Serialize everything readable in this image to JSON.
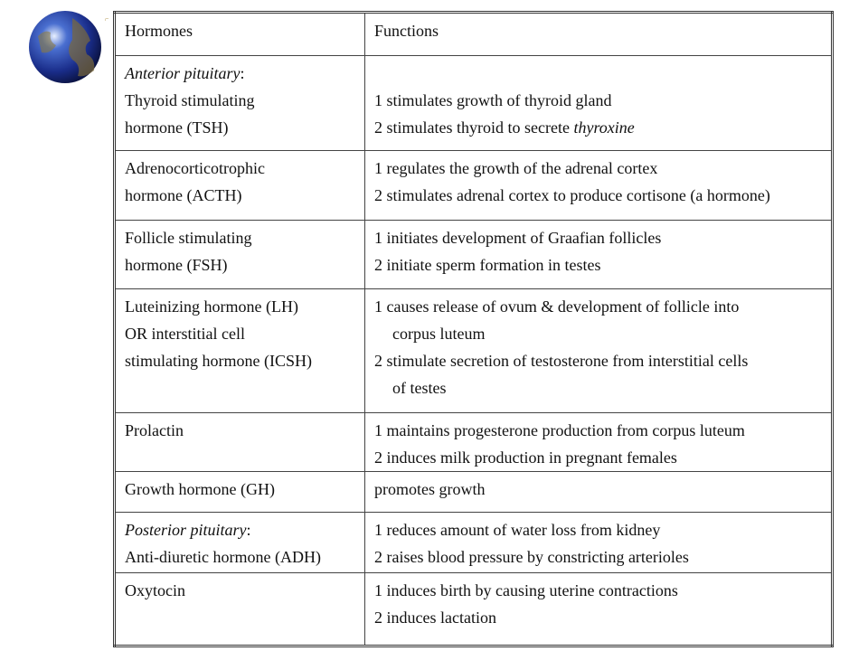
{
  "table": {
    "header": [
      "Hormones",
      "Functions"
    ],
    "rows": [
      {
        "hormone": [
          {
            "parts": [
              {
                "text": "Anterior pituitary",
                "italic": true
              },
              {
                "text": ":"
              }
            ]
          },
          {
            "text": "Thyroid stimulating"
          },
          {
            "text": "hormone (TSH)"
          }
        ],
        "functions": [
          {
            "text": "1 stimulates growth of thyroid gland"
          },
          {
            "parts": [
              {
                "text": "2 stimulates thyroid to secrete "
              },
              {
                "text": "thyroxine",
                "italic": true
              }
            ]
          }
        ]
      },
      {
        "hormone": [
          {
            "text": "Adrenocorticotrophic"
          },
          {
            "text": "hormone (ACTH)"
          }
        ],
        "functions": [
          {
            "text": "1 regulates the growth of the adrenal cortex"
          },
          {
            "text": "2 stimulates adrenal cortex to produce cortisone (a hormone)"
          }
        ]
      },
      {
        "hormone": [
          {
            "text": "Follicle stimulating"
          },
          {
            "text": "hormone (FSH)"
          }
        ],
        "functions": [
          {
            "text": "1 initiates development of Graafian follicles"
          },
          {
            "text": "2 initiate sperm formation in testes"
          }
        ]
      },
      {
        "hormone": [
          {
            "text": "Luteinizing hormone (LH)"
          },
          {
            "text": "OR interstitial cell"
          },
          {
            "text": "stimulating hormone (ICSH)"
          }
        ],
        "functions": [
          {
            "text": "1 causes release of ovum & development of follicle into"
          },
          {
            "text": "corpus luteum",
            "indent": true
          },
          {
            "text": "2 stimulate secretion of testosterone from interstitial cells"
          },
          {
            "text": "of testes",
            "indent": true
          }
        ]
      },
      {
        "hormone": [
          {
            "text": "Prolactin"
          }
        ],
        "functions": [
          {
            "text": "1 maintains progesterone production from corpus luteum"
          },
          {
            "text": "2 induces milk production in pregnant females"
          }
        ]
      },
      {
        "hormone": [
          {
            "text": "Growth hormone (GH)"
          }
        ],
        "functions": [
          {
            "text": "promotes growth"
          }
        ]
      },
      {
        "hormone": [
          {
            "parts": [
              {
                "text": "Posterior pituitary",
                "italic": true
              },
              {
                "text": ":"
              }
            ]
          },
          {
            "text": "Anti-diuretic hormone (ADH)"
          }
        ],
        "functions": [
          {
            "text": "1 reduces amount of water loss from kidney"
          },
          {
            "text": "2 raises blood pressure by constricting arterioles"
          }
        ]
      },
      {
        "hormone": [
          {
            "text": "Oxytocin"
          }
        ],
        "functions": [
          {
            "text": "1 induces birth by causing uterine contractions"
          },
          {
            "text": "2 induces lactation"
          }
        ]
      }
    ]
  }
}
